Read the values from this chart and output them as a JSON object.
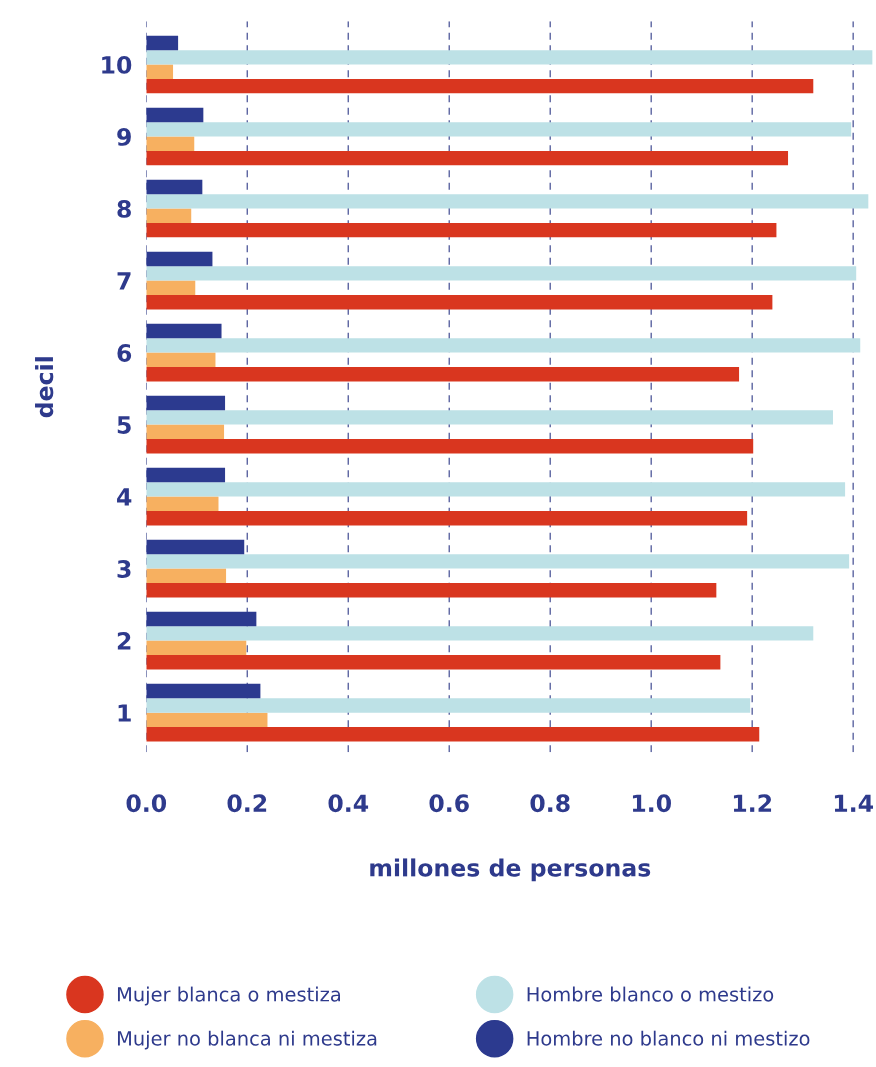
{
  "chart_data": {
    "type": "bar",
    "orientation": "horizontal",
    "xlabel": "millones de personas",
    "ylabel": "decil",
    "categories": [
      "10",
      "9",
      "8",
      "7",
      "6",
      "5",
      "4",
      "3",
      "2",
      "1"
    ],
    "series": [
      {
        "name": "Mujer blanca o mestiza",
        "color": "#d9361f",
        "values": [
          1.321,
          1.271,
          1.248,
          1.24,
          1.174,
          1.202,
          1.19,
          1.129,
          1.137,
          1.214
        ]
      },
      {
        "name": "Mujer no blanca ni mestiza",
        "color": "#f7b060",
        "values": [
          0.053,
          0.095,
          0.089,
          0.097,
          0.137,
          0.154,
          0.143,
          0.158,
          0.198,
          0.24
        ]
      },
      {
        "name": "Hombre blanco o mestizo",
        "color": "#bde1e6",
        "values": [
          1.438,
          1.396,
          1.43,
          1.406,
          1.414,
          1.36,
          1.384,
          1.392,
          1.321,
          1.196
        ]
      },
      {
        "name": "Hombre no blanco ni mestizo",
        "color": "#2c3a8f",
        "values": [
          0.063,
          0.113,
          0.111,
          0.131,
          0.149,
          0.156,
          0.156,
          0.194,
          0.218,
          0.226
        ]
      }
    ],
    "xlim": [
      0,
      1.44
    ],
    "xticks": [
      {
        "value": 0,
        "label": "0.0"
      },
      {
        "value": 0.2,
        "label": "0.2"
      },
      {
        "value": 0.4,
        "label": "0.4"
      },
      {
        "value": 0.6,
        "label": "0.6"
      },
      {
        "value": 0.8,
        "label": "0.8"
      },
      {
        "value": 1.0,
        "label": "1.0"
      },
      {
        "value": 1.2,
        "label": "1.2"
      },
      {
        "value": 1.4,
        "label": "1.4"
      }
    ],
    "grid": "x",
    "legend": "bottom"
  }
}
